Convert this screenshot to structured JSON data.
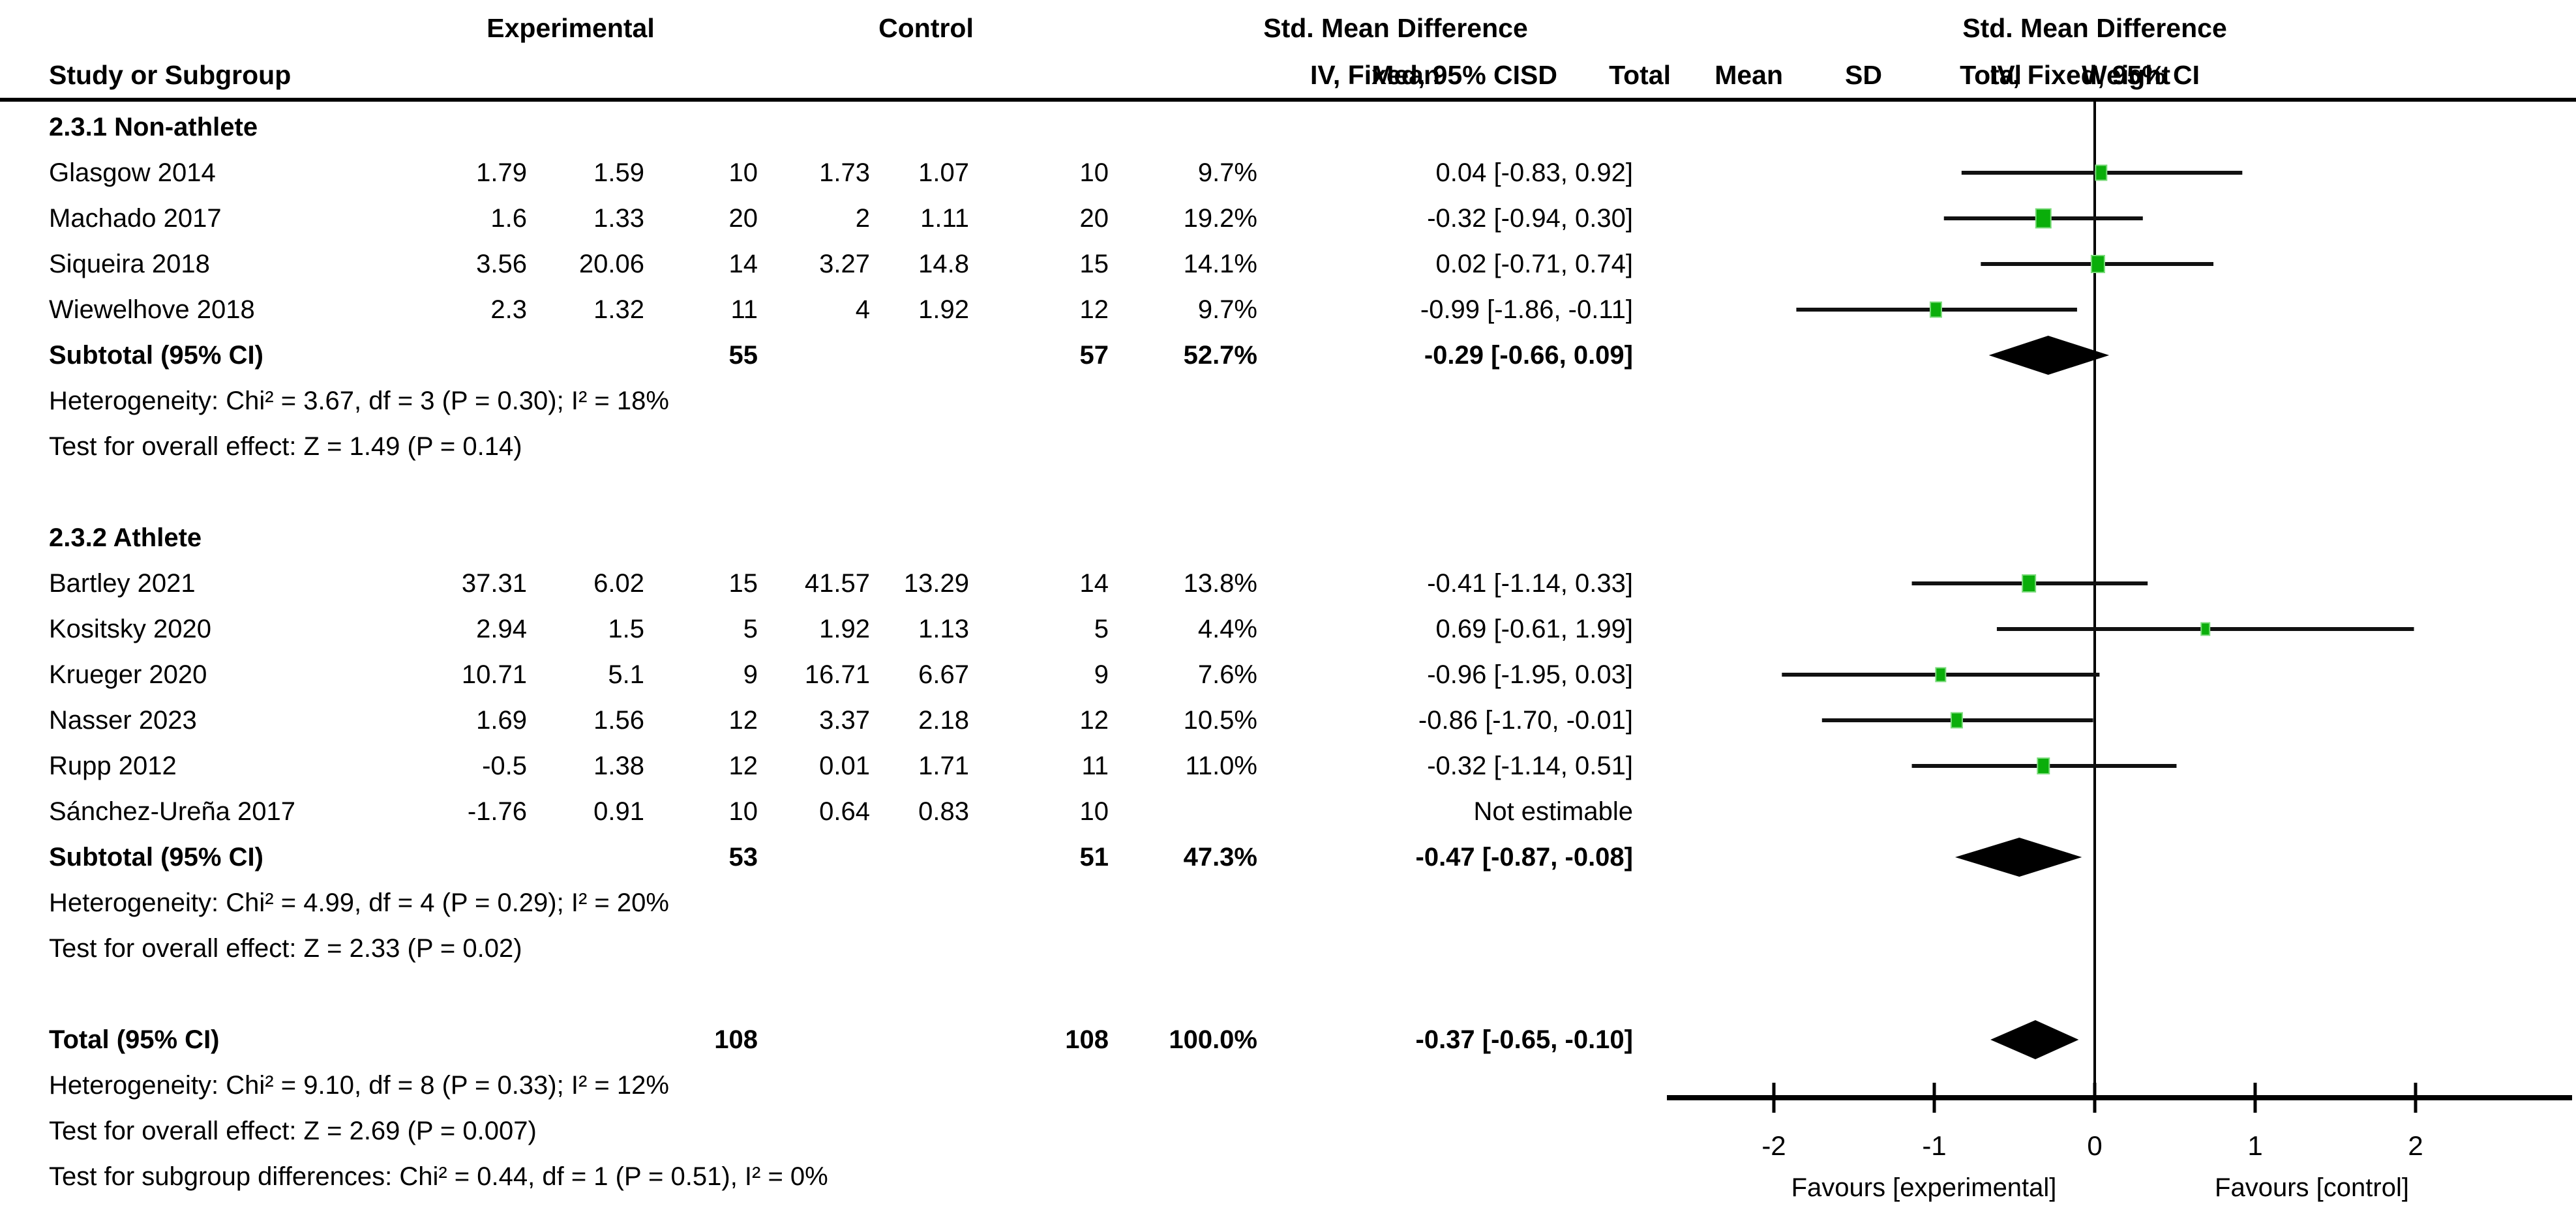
{
  "columns": {
    "study": "Study or Subgroup",
    "group1": "Experimental",
    "group2": "Control",
    "mean": "Mean",
    "sd": "SD",
    "total": "Total",
    "weight": "Weight",
    "effect": "Std. Mean Difference",
    "method": "IV, Fixed, 95% CI"
  },
  "colors": {
    "marker_fill": "#0aae0a",
    "marker_border": "#7cdb7c",
    "ci_line": "#111111",
    "diamond": "#000000",
    "axis": "#000000"
  },
  "chart_data": {
    "type": "scatter",
    "effect_measure": "Std. Mean Difference",
    "model": "IV, Fixed, 95% CI",
    "xlim": [
      -2.6,
      3.0
    ],
    "ticks": [
      -2,
      -1,
      0,
      1,
      2
    ],
    "favours_left": "Favours [experimental]",
    "favours_right": "Favours [control]",
    "subgroups": [
      {
        "label": "2.3.1 Non-athlete",
        "studies": [
          {
            "name": "Glasgow 2014",
            "m1": "1.79",
            "sd1": "1.59",
            "t1": "10",
            "m2": "1.73",
            "sd2": "1.07",
            "t2": "10",
            "w": "9.7%",
            "wv": 9.7,
            "ci": "0.04 [-0.83, 0.92]",
            "smd": 0.04,
            "lo": -0.83,
            "hi": 0.92
          },
          {
            "name": "Machado 2017",
            "m1": "1.6",
            "sd1": "1.33",
            "t1": "20",
            "m2": "2",
            "sd2": "1.11",
            "t2": "20",
            "w": "19.2%",
            "wv": 19.2,
            "ci": "-0.32 [-0.94, 0.30]",
            "smd": -0.32,
            "lo": -0.94,
            "hi": 0.3
          },
          {
            "name": "Siqueira 2018",
            "m1": "3.56",
            "sd1": "20.06",
            "t1": "14",
            "m2": "3.27",
            "sd2": "14.8",
            "t2": "15",
            "w": "14.1%",
            "wv": 14.1,
            "ci": "0.02 [-0.71, 0.74]",
            "smd": 0.02,
            "lo": -0.71,
            "hi": 0.74
          },
          {
            "name": "Wiewelhove 2018",
            "m1": "2.3",
            "sd1": "1.32",
            "t1": "11",
            "m2": "4",
            "sd2": "1.92",
            "t2": "12",
            "w": "9.7%",
            "wv": 9.7,
            "ci": "-0.99 [-1.86, -0.11]",
            "smd": -0.99,
            "lo": -1.86,
            "hi": -0.11
          }
        ],
        "subtotal": {
          "label": "Subtotal (95% CI)",
          "t1": "55",
          "t2": "57",
          "w": "52.7%",
          "ci": "-0.29 [-0.66, 0.09]",
          "smd": -0.29,
          "lo": -0.66,
          "hi": 0.09
        },
        "heterogeneity": "Heterogeneity: Chi² = 3.67, df = 3 (P = 0.30); I² = 18%",
        "overall": "Test for overall effect: Z = 1.49 (P = 0.14)"
      },
      {
        "label": "2.3.2 Athlete",
        "studies": [
          {
            "name": "Bartley 2021",
            "m1": "37.31",
            "sd1": "6.02",
            "t1": "15",
            "m2": "41.57",
            "sd2": "13.29",
            "t2": "14",
            "w": "13.8%",
            "wv": 13.8,
            "ci": "-0.41 [-1.14, 0.33]",
            "smd": -0.41,
            "lo": -1.14,
            "hi": 0.33
          },
          {
            "name": "Kositsky 2020",
            "m1": "2.94",
            "sd1": "1.5",
            "t1": "5",
            "m2": "1.92",
            "sd2": "1.13",
            "t2": "5",
            "w": "4.4%",
            "wv": 4.4,
            "ci": "0.69 [-0.61, 1.99]",
            "smd": 0.69,
            "lo": -0.61,
            "hi": 1.99
          },
          {
            "name": "Krueger 2020",
            "m1": "10.71",
            "sd1": "5.1",
            "t1": "9",
            "m2": "16.71",
            "sd2": "6.67",
            "t2": "9",
            "w": "7.6%",
            "wv": 7.6,
            "ci": "-0.96 [-1.95, 0.03]",
            "smd": -0.96,
            "lo": -1.95,
            "hi": 0.03
          },
          {
            "name": "Nasser 2023",
            "m1": "1.69",
            "sd1": "1.56",
            "t1": "12",
            "m2": "3.37",
            "sd2": "2.18",
            "t2": "12",
            "w": "10.5%",
            "wv": 10.5,
            "ci": "-0.86 [-1.70, -0.01]",
            "smd": -0.86,
            "lo": -1.7,
            "hi": -0.01
          },
          {
            "name": "Rupp 2012",
            "m1": "-0.5",
            "sd1": "1.38",
            "t1": "12",
            "m2": "0.01",
            "sd2": "1.71",
            "t2": "11",
            "w": "11.0%",
            "wv": 11.0,
            "ci": "-0.32 [-1.14, 0.51]",
            "smd": -0.32,
            "lo": -1.14,
            "hi": 0.51
          },
          {
            "name": "Sánchez-Ureña 2017",
            "m1": "-1.76",
            "sd1": "0.91",
            "t1": "10",
            "m2": "0.64",
            "sd2": "0.83",
            "t2": "10",
            "w": "",
            "wv": null,
            "ci": "Not estimable",
            "smd": null,
            "lo": null,
            "hi": null
          }
        ],
        "subtotal": {
          "label": "Subtotal (95% CI)",
          "t1": "53",
          "t2": "51",
          "w": "47.3%",
          "ci": "-0.47 [-0.87, -0.08]",
          "smd": -0.47,
          "lo": -0.87,
          "hi": -0.08
        },
        "heterogeneity": "Heterogeneity: Chi² = 4.99, df = 4 (P = 0.29); I² = 20%",
        "overall": "Test for overall effect: Z = 2.33 (P = 0.02)"
      }
    ],
    "total": {
      "label": "Total (95% CI)",
      "t1": "108",
      "t2": "108",
      "w": "100.0%",
      "ci": "-0.37 [-0.65, -0.10]",
      "smd": -0.37,
      "lo": -0.65,
      "hi": -0.1
    },
    "total_heterogeneity": "Heterogeneity: Chi² = 9.10, df = 8 (P = 0.33); I² = 12%",
    "total_overall": "Test for overall effect: Z = 2.69 (P = 0.007)",
    "subgroup_diff": "Test for subgroup differences: Chi² = 0.44, df = 1 (P = 0.51), I² = 0%"
  }
}
